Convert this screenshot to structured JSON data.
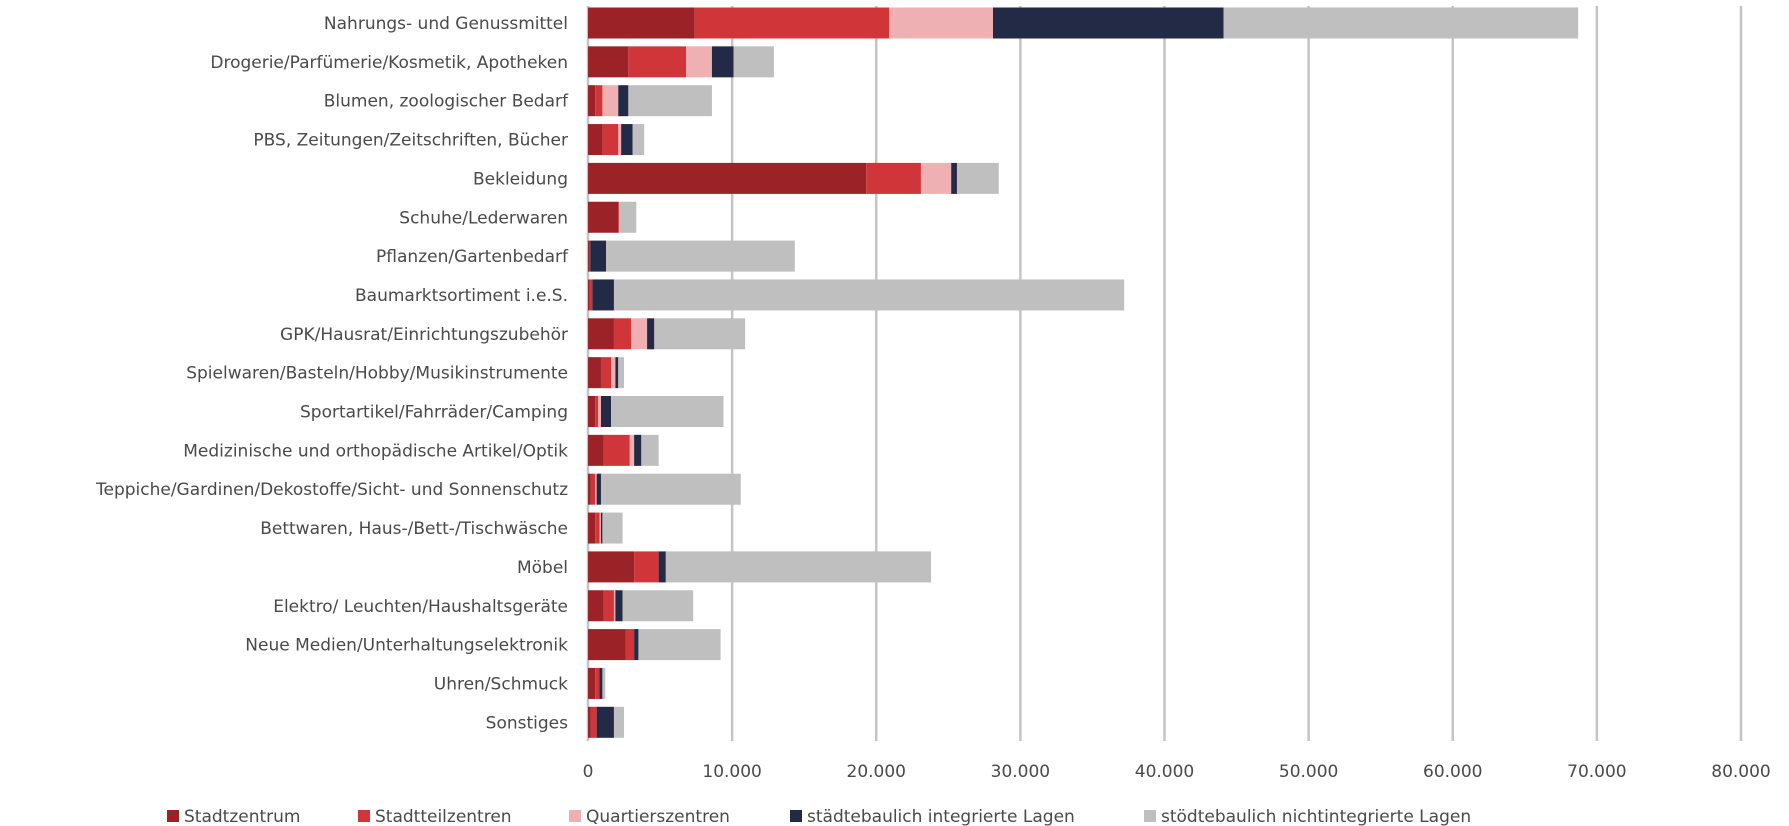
{
  "chart_data": {
    "type": "bar",
    "orientation": "horizontal",
    "stacked": true,
    "categories": [
      "Nahrungs- und Genussmittel",
      "Drogerie/Parfümerie/Kosmetik, Apotheken",
      "Blumen, zoologischer Bedarf",
      "PBS, Zeitungen/Zeitschriften, Bücher",
      "Bekleidung",
      "Schuhe/Lederwaren",
      "Pflanzen/Gartenbedarf",
      "Baumarktsortiment i.e.S.",
      "GPK/Hausrat/Einrichtungszubehör",
      "Spielwaren/Basteln/Hobby/Musikinstrumente",
      "Sportartikel/Fahrräder/Camping",
      "Medizinische und orthopädische Artikel/Optik",
      "Teppiche/Gardinen/Dekostoffe/Sicht- und Sonnenschutz",
      "Bettwaren, Haus-/Bett-/Tischwäsche",
      "Möbel",
      "Elektro/ Leuchten/Haushaltsgeräte",
      "Neue Medien/Unterhaltungselektronik",
      "Uhren/Schmuck",
      "Sonstiges"
    ],
    "series": [
      {
        "name": "Stadtzentrum",
        "color": "#9b2226",
        "values": [
          7400,
          2800,
          500,
          1000,
          19300,
          2100,
          100,
          100,
          1800,
          900,
          500,
          1100,
          200,
          500,
          3200,
          1100,
          2600,
          500,
          200
        ]
      },
      {
        "name": "Stadtteilzentren",
        "color": "#d0353a",
        "values": [
          13500,
          4000,
          500,
          1100,
          3800,
          50,
          50,
          200,
          1200,
          700,
          200,
          1800,
          300,
          300,
          1700,
          700,
          600,
          300,
          400
        ]
      },
      {
        "name": "Quartierszentren",
        "color": "#eeb0b3",
        "values": [
          7200,
          1800,
          1100,
          200,
          2100,
          0,
          0,
          0,
          1100,
          300,
          200,
          300,
          100,
          100,
          0,
          100,
          0,
          0,
          0
        ]
      },
      {
        "name": "städtebaulich integrierte Lagen",
        "color": "#222a45",
        "values": [
          16000,
          1500,
          700,
          800,
          400,
          0,
          1100,
          1500,
          500,
          200,
          700,
          500,
          300,
          100,
          500,
          500,
          300,
          200,
          1200
        ]
      },
      {
        "name": "stödtebaulich nichtintegrierte Lagen",
        "color": "#bfbfbf",
        "values": [
          24600,
          2800,
          5800,
          800,
          2900,
          1200,
          13100,
          35400,
          6300,
          400,
          7800,
          1200,
          9700,
          1400,
          18400,
          4900,
          5700,
          200,
          700
        ]
      }
    ],
    "xlim": [
      0,
      80000
    ],
    "xticks": [
      "0",
      "10.000",
      "20.000",
      "30.000",
      "40.000",
      "50.000",
      "60.000",
      "70.000",
      "80.000"
    ],
    "grid": "vertical",
    "legend_position": "bottom"
  }
}
